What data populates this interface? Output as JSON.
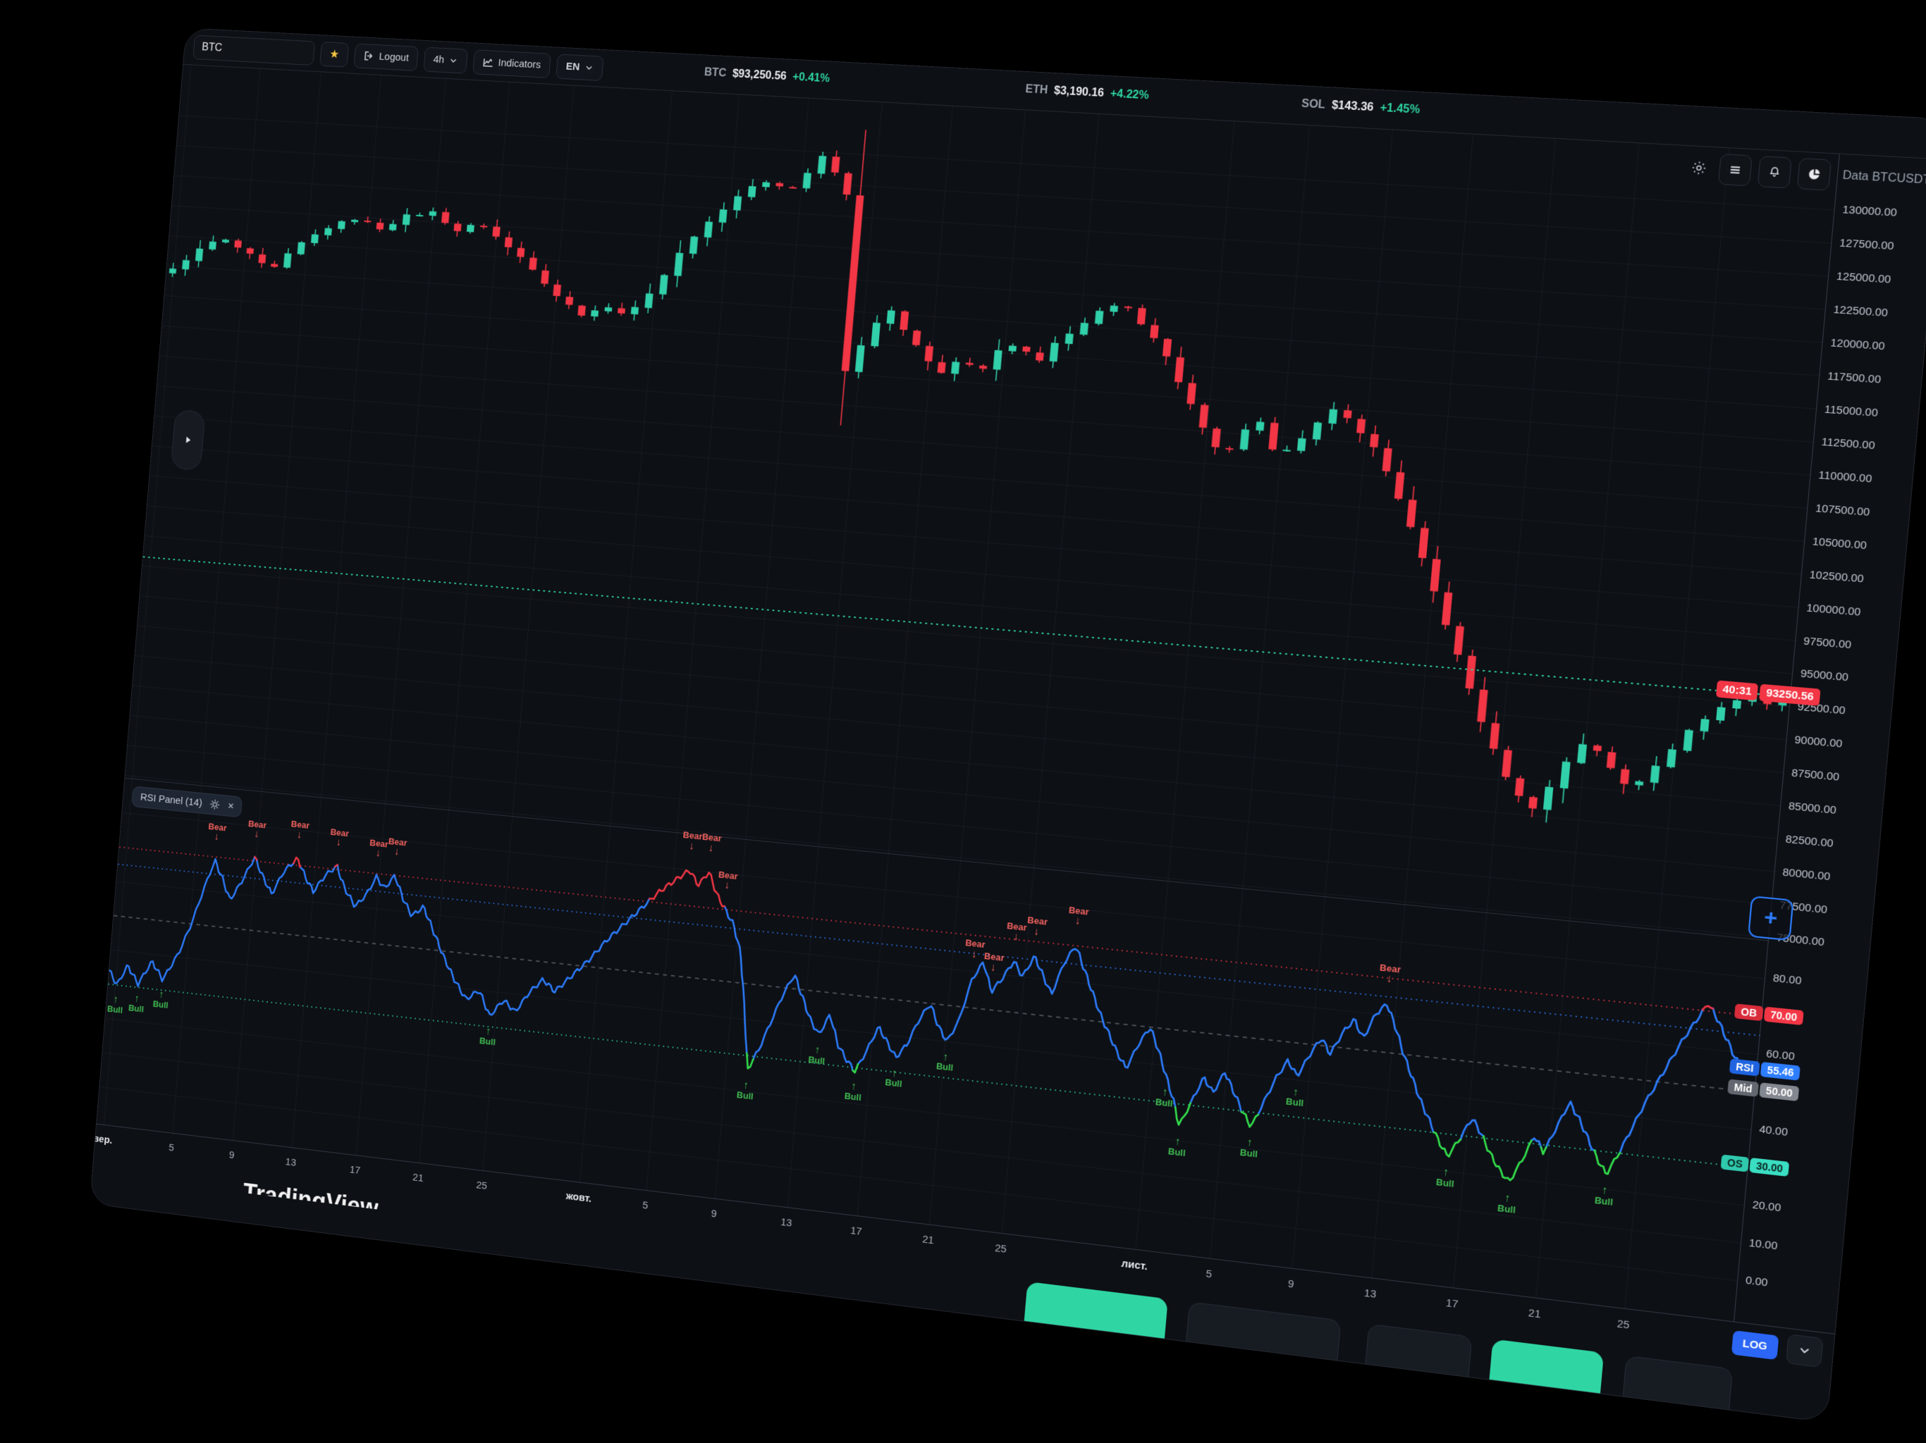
{
  "toolbar": {
    "symbol_value": "BTC",
    "logout_label": "Logout",
    "timeframe_value": "4h",
    "indicators_label": "Indicators",
    "language_value": "EN"
  },
  "tickers": [
    {
      "symbol": "BTC",
      "price": "$93,250.56",
      "change": "+0.41%"
    },
    {
      "symbol": "ETH",
      "price": "$3,190.16",
      "change": "+4.22%"
    },
    {
      "symbol": "SOL",
      "price": "$143.36",
      "change": "+1.45%"
    }
  ],
  "header": {
    "data_label": "Data BTCUSDT"
  },
  "rsi_panel": {
    "title": "RSI Panel (14)"
  },
  "price_scale": {
    "current_countdown": "40:31",
    "current_price": "93250.56"
  },
  "bottom": {
    "log_label": "LOG"
  },
  "watermark": "TradingView",
  "colors": {
    "up": "#31d0aa",
    "down": "#f23645",
    "rsi_line": "#2d7dff",
    "overbought": "#f23645",
    "oversold": "#33e04c",
    "accent_blue": "#2b66f6",
    "teal": "#2fd6a4"
  },
  "time_axis": {
    "labels": [
      {
        "text": "вер.",
        "t": 0.005,
        "major": true
      },
      {
        "text": "5",
        "t": 0.051,
        "major": false
      },
      {
        "text": "9",
        "t": 0.091,
        "major": false
      },
      {
        "text": "13",
        "t": 0.13,
        "major": false
      },
      {
        "text": "17",
        "t": 0.172,
        "major": false
      },
      {
        "text": "21",
        "t": 0.213,
        "major": false
      },
      {
        "text": "25",
        "t": 0.254,
        "major": false
      },
      {
        "text": "жовт.",
        "t": 0.316,
        "major": true
      },
      {
        "text": "5",
        "t": 0.358,
        "major": false
      },
      {
        "text": "9",
        "t": 0.401,
        "major": false
      },
      {
        "text": "13",
        "t": 0.446,
        "major": false
      },
      {
        "text": "17",
        "t": 0.489,
        "major": false
      },
      {
        "text": "21",
        "t": 0.533,
        "major": false
      },
      {
        "text": "25",
        "t": 0.577,
        "major": false
      },
      {
        "text": "лист.",
        "t": 0.657,
        "major": true
      },
      {
        "text": "5",
        "t": 0.701,
        "major": false
      },
      {
        "text": "9",
        "t": 0.749,
        "major": false
      },
      {
        "text": "13",
        "t": 0.795,
        "major": false
      },
      {
        "text": "17",
        "t": 0.842,
        "major": false
      },
      {
        "text": "21",
        "t": 0.889,
        "major": false
      },
      {
        "text": "25",
        "t": 0.939,
        "major": false
      }
    ]
  },
  "chart_data": [
    {
      "type": "candlestick",
      "symbol": "BTCUSDT",
      "timeframe": "4h",
      "title": "",
      "ylim": [
        74800,
        134200
      ],
      "y_ticks": [
        130000,
        127500,
        125000,
        122500,
        120000,
        117500,
        115000,
        112500,
        110000,
        107500,
        105000,
        102500,
        100000,
        97500,
        95000,
        92500,
        90000,
        87500,
        85000,
        82500,
        80000,
        77500,
        75000
      ],
      "current_price": 93250.56,
      "countdown": "40:31",
      "num_candles": 120,
      "close_waypoints": [
        [
          0.0,
          117200
        ],
        [
          0.012,
          118600
        ],
        [
          0.03,
          120100
        ],
        [
          0.048,
          119000
        ],
        [
          0.065,
          117600
        ],
        [
          0.082,
          119900
        ],
        [
          0.1,
          121500
        ],
        [
          0.118,
          122400
        ],
        [
          0.135,
          121700
        ],
        [
          0.152,
          122900
        ],
        [
          0.168,
          123300
        ],
        [
          0.185,
          121900
        ],
        [
          0.2,
          122700
        ],
        [
          0.215,
          121100
        ],
        [
          0.232,
          119700
        ],
        [
          0.25,
          117400
        ],
        [
          0.268,
          115800
        ],
        [
          0.283,
          116500
        ],
        [
          0.3,
          116100
        ],
        [
          0.318,
          119200
        ],
        [
          0.335,
          122600
        ],
        [
          0.352,
          124900
        ],
        [
          0.368,
          126900
        ],
        [
          0.382,
          127400
        ],
        [
          0.392,
          126600
        ],
        [
          0.403,
          128300
        ],
        [
          0.412,
          129700
        ],
        [
          0.42,
          128600
        ],
        [
          0.428,
          127100
        ],
        [
          0.433,
          124000
        ],
        [
          0.437,
          112800
        ],
        [
          0.4395,
          109500
        ],
        [
          0.442,
          114200
        ],
        [
          0.452,
          116300
        ],
        [
          0.462,
          117900
        ],
        [
          0.472,
          116200
        ],
        [
          0.483,
          114600
        ],
        [
          0.495,
          112900
        ],
        [
          0.507,
          114400
        ],
        [
          0.518,
          113300
        ],
        [
          0.53,
          115200
        ],
        [
          0.542,
          115800
        ],
        [
          0.553,
          114200
        ],
        [
          0.565,
          116400
        ],
        [
          0.578,
          117600
        ],
        [
          0.59,
          118900
        ],
        [
          0.602,
          119500
        ],
        [
          0.613,
          118200
        ],
        [
          0.625,
          116700
        ],
        [
          0.637,
          114100
        ],
        [
          0.648,
          111800
        ],
        [
          0.658,
          109600
        ],
        [
          0.668,
          108100
        ],
        [
          0.678,
          109900
        ],
        [
          0.688,
          111200
        ],
        [
          0.698,
          108700
        ],
        [
          0.708,
          109300
        ],
        [
          0.72,
          110900
        ],
        [
          0.732,
          112400
        ],
        [
          0.745,
          111300
        ],
        [
          0.758,
          109400
        ],
        [
          0.77,
          106800
        ],
        [
          0.782,
          103600
        ],
        [
          0.794,
          100200
        ],
        [
          0.806,
          96800
        ],
        [
          0.818,
          93400
        ],
        [
          0.83,
          89900
        ],
        [
          0.842,
          86800
        ],
        [
          0.854,
          84300
        ],
        [
          0.864,
          82900
        ],
        [
          0.874,
          84800
        ],
        [
          0.884,
          87300
        ],
        [
          0.893,
          88700
        ],
        [
          0.902,
          87600
        ],
        [
          0.911,
          86000
        ],
        [
          0.92,
          85200
        ],
        [
          0.929,
          86700
        ],
        [
          0.938,
          88100
        ],
        [
          0.947,
          89600
        ],
        [
          0.956,
          90900
        ],
        [
          0.965,
          91900
        ],
        [
          0.974,
          92600
        ],
        [
          0.982,
          93000
        ],
        [
          0.99,
          92500
        ],
        [
          1.0,
          93250
        ]
      ]
    },
    {
      "type": "line",
      "name": "RSI Panel (14)",
      "period": 14,
      "last_value": 55.46,
      "ylim": [
        -11,
        90
      ],
      "y_ticks": [
        80,
        60,
        40,
        20,
        10,
        0
      ],
      "levels": [
        {
          "label": "OB",
          "value": 70,
          "color": "#f23645",
          "style": "dotted"
        },
        {
          "label": "",
          "value": 65,
          "color": "#2d7dff",
          "style": "dotted"
        },
        {
          "label": "Mid",
          "value": 50,
          "color": "#9aa1ad",
          "style": "dashed"
        },
        {
          "label": "OS",
          "value": 30,
          "color": "#2fd6a4",
          "style": "dotted"
        }
      ],
      "axis_pills": [
        {
          "name": "OB",
          "value": "70.00",
          "v": 70,
          "cls": "ob"
        },
        {
          "name": "RSI",
          "value": "55.46",
          "v": 55.46,
          "cls": "rsi"
        },
        {
          "name": "Mid",
          "value": "50.00",
          "v": 50,
          "cls": "mid"
        },
        {
          "name": "OS",
          "value": "30.00",
          "v": 30,
          "cls": "os"
        }
      ],
      "waypoints": [
        [
          0.0,
          34
        ],
        [
          0.006,
          30
        ],
        [
          0.012,
          36
        ],
        [
          0.02,
          31
        ],
        [
          0.028,
          38
        ],
        [
          0.036,
          33
        ],
        [
          0.045,
          41
        ],
        [
          0.052,
          50
        ],
        [
          0.058,
          60
        ],
        [
          0.064,
          69
        ],
        [
          0.07,
          64
        ],
        [
          0.076,
          58
        ],
        [
          0.082,
          63
        ],
        [
          0.09,
          71
        ],
        [
          0.096,
          66
        ],
        [
          0.103,
          61
        ],
        [
          0.11,
          68
        ],
        [
          0.118,
          72
        ],
        [
          0.124,
          67
        ],
        [
          0.13,
          63
        ],
        [
          0.137,
          68
        ],
        [
          0.144,
          71
        ],
        [
          0.15,
          65
        ],
        [
          0.158,
          60
        ],
        [
          0.165,
          64
        ],
        [
          0.17,
          69
        ],
        [
          0.176,
          66
        ],
        [
          0.182,
          70
        ],
        [
          0.188,
          64
        ],
        [
          0.195,
          59
        ],
        [
          0.202,
          62
        ],
        [
          0.21,
          55
        ],
        [
          0.218,
          48
        ],
        [
          0.226,
          42
        ],
        [
          0.234,
          37
        ],
        [
          0.242,
          40
        ],
        [
          0.25,
          33
        ],
        [
          0.258,
          38
        ],
        [
          0.266,
          35
        ],
        [
          0.274,
          41
        ],
        [
          0.282,
          45
        ],
        [
          0.29,
          42
        ],
        [
          0.3,
          47
        ],
        [
          0.31,
          52
        ],
        [
          0.32,
          58
        ],
        [
          0.33,
          63
        ],
        [
          0.34,
          68
        ],
        [
          0.35,
          73
        ],
        [
          0.36,
          77
        ],
        [
          0.368,
          80
        ],
        [
          0.374,
          76
        ],
        [
          0.38,
          80
        ],
        [
          0.386,
          74
        ],
        [
          0.392,
          70
        ],
        [
          0.398,
          66
        ],
        [
          0.404,
          58
        ],
        [
          0.41,
          40
        ],
        [
          0.414,
          26
        ],
        [
          0.42,
          32
        ],
        [
          0.426,
          40
        ],
        [
          0.432,
          48
        ],
        [
          0.438,
          54
        ],
        [
          0.444,
          48
        ],
        [
          0.45,
          42
        ],
        [
          0.456,
          38
        ],
        [
          0.462,
          44
        ],
        [
          0.468,
          36
        ],
        [
          0.474,
          32
        ],
        [
          0.48,
          29
        ],
        [
          0.486,
          35
        ],
        [
          0.492,
          42
        ],
        [
          0.498,
          38
        ],
        [
          0.504,
          34
        ],
        [
          0.51,
          38
        ],
        [
          0.516,
          45
        ],
        [
          0.522,
          50
        ],
        [
          0.528,
          44
        ],
        [
          0.534,
          40
        ],
        [
          0.54,
          46
        ],
        [
          0.546,
          58
        ],
        [
          0.552,
          63
        ],
        [
          0.558,
          55
        ],
        [
          0.564,
          59
        ],
        [
          0.57,
          64
        ],
        [
          0.576,
          60
        ],
        [
          0.582,
          66
        ],
        [
          0.588,
          61
        ],
        [
          0.594,
          56
        ],
        [
          0.6,
          65
        ],
        [
          0.606,
          70
        ],
        [
          0.612,
          64
        ],
        [
          0.618,
          58
        ],
        [
          0.624,
          52
        ],
        [
          0.63,
          47
        ],
        [
          0.636,
          42
        ],
        [
          0.642,
          38
        ],
        [
          0.648,
          45
        ],
        [
          0.654,
          50
        ],
        [
          0.66,
          44
        ],
        [
          0.666,
          37
        ],
        [
          0.672,
          30
        ],
        [
          0.676,
          24
        ],
        [
          0.682,
          31
        ],
        [
          0.688,
          38
        ],
        [
          0.694,
          34
        ],
        [
          0.7,
          40
        ],
        [
          0.706,
          35
        ],
        [
          0.712,
          30
        ],
        [
          0.718,
          26
        ],
        [
          0.724,
          33
        ],
        [
          0.73,
          40
        ],
        [
          0.736,
          45
        ],
        [
          0.742,
          41
        ],
        [
          0.748,
          47
        ],
        [
          0.754,
          52
        ],
        [
          0.76,
          48
        ],
        [
          0.766,
          54
        ],
        [
          0.772,
          58
        ],
        [
          0.778,
          53
        ],
        [
          0.784,
          60
        ],
        [
          0.79,
          63
        ],
        [
          0.796,
          57
        ],
        [
          0.802,
          50
        ],
        [
          0.808,
          44
        ],
        [
          0.814,
          38
        ],
        [
          0.82,
          33
        ],
        [
          0.826,
          28
        ],
        [
          0.832,
          24
        ],
        [
          0.838,
          29
        ],
        [
          0.844,
          35
        ],
        [
          0.85,
          31
        ],
        [
          0.856,
          26
        ],
        [
          0.862,
          22
        ],
        [
          0.868,
          19
        ],
        [
          0.874,
          25
        ],
        [
          0.88,
          32
        ],
        [
          0.886,
          28
        ],
        [
          0.892,
          35
        ],
        [
          0.898,
          42
        ],
        [
          0.904,
          38
        ],
        [
          0.91,
          33
        ],
        [
          0.916,
          28
        ],
        [
          0.922,
          24
        ],
        [
          0.928,
          30
        ],
        [
          0.934,
          37
        ],
        [
          0.94,
          44
        ],
        [
          0.946,
          50
        ],
        [
          0.952,
          56
        ],
        [
          0.958,
          62
        ],
        [
          0.964,
          67
        ],
        [
          0.97,
          72
        ],
        [
          0.976,
          68
        ],
        [
          0.982,
          63
        ],
        [
          0.988,
          58
        ],
        [
          0.994,
          55
        ],
        [
          1.0,
          55.46
        ]
      ],
      "markers": {
        "bear": [
          [
            0.064,
            71
          ],
          [
            0.09,
            73
          ],
          [
            0.118,
            74
          ],
          [
            0.144,
            73
          ],
          [
            0.17,
            71
          ],
          [
            0.182,
            72
          ],
          [
            0.368,
            82
          ],
          [
            0.38,
            82
          ],
          [
            0.392,
            72
          ],
          [
            0.546,
            60
          ],
          [
            0.558,
            57
          ],
          [
            0.57,
            66
          ],
          [
            0.582,
            68
          ],
          [
            0.606,
            72
          ],
          [
            0.79,
            65
          ]
        ],
        "bull": [
          [
            0.006,
            28
          ],
          [
            0.02,
            29
          ],
          [
            0.036,
            31
          ],
          [
            0.25,
            31
          ],
          [
            0.414,
            24
          ],
          [
            0.456,
            36
          ],
          [
            0.48,
            27
          ],
          [
            0.504,
            32
          ],
          [
            0.534,
            38
          ],
          [
            0.666,
            35
          ],
          [
            0.676,
            22
          ],
          [
            0.718,
            24
          ],
          [
            0.742,
            39
          ],
          [
            0.832,
            22
          ],
          [
            0.868,
            17
          ],
          [
            0.922,
            22
          ]
        ]
      }
    }
  ]
}
